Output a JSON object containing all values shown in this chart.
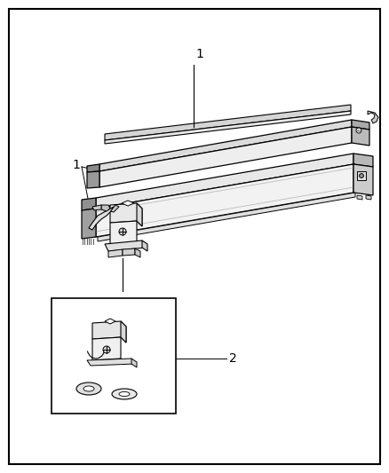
{
  "bg_color": "#ffffff",
  "border_color": "#000000",
  "border_linewidth": 1.5,
  "line_color": "#000000",
  "fill_light": "#f0f0f0",
  "fill_mid": "#e0e0e0",
  "fill_dark": "#c8c8c8",
  "fill_cap": "#d0d0d0",
  "fill_very_light": "#f8f8f8",
  "label1": "1",
  "label2": "2"
}
